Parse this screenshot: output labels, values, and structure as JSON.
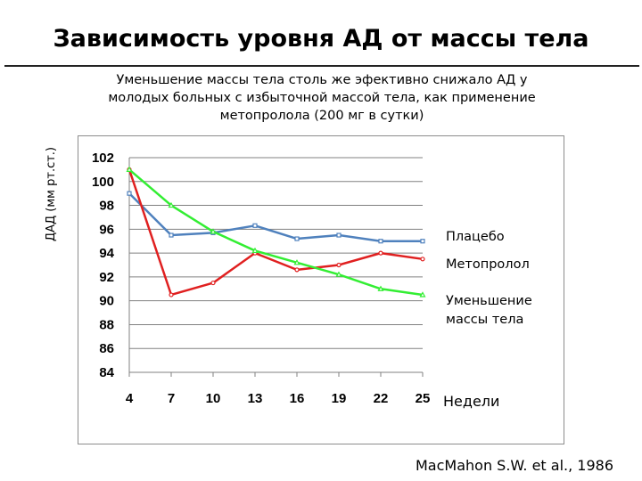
{
  "slide": {
    "title": "Зависимость уровня АД от массы тела",
    "subtitle": "Уменьшение массы тела столь же эфективно снижало АД у молодых больных с избыточной массой тела, как применение метопролола (200 мг в сутки)",
    "citation": "MacMahon S.W. et al., 1986"
  },
  "chart_data": {
    "type": "line",
    "ylabel": "ДАД (мм рт.ст.)",
    "xlabel": "Недели",
    "x": [
      4,
      7,
      10,
      13,
      16,
      19,
      22,
      25
    ],
    "ylim": [
      84,
      102
    ],
    "yticks": [
      84,
      86,
      88,
      90,
      92,
      94,
      96,
      98,
      100,
      102
    ],
    "grid": true,
    "legend_placement": "right",
    "series": [
      {
        "name": "Плацебо",
        "color": "#4f81bd",
        "marker": "square",
        "values": [
          99,
          95.5,
          95.7,
          96.3,
          95.2,
          95.5,
          95.0,
          95.0
        ]
      },
      {
        "name": "Метопролол",
        "color": "#e02020",
        "marker": "circle",
        "values": [
          101,
          90.5,
          91.5,
          94.0,
          92.6,
          93.0,
          94.0,
          93.5
        ]
      },
      {
        "name": "Уменьшение массы тела",
        "color": "#33ee33",
        "marker": "triangle",
        "values": [
          101,
          98,
          95.8,
          94.2,
          93.2,
          92.2,
          91.0,
          90.5
        ]
      }
    ]
  }
}
